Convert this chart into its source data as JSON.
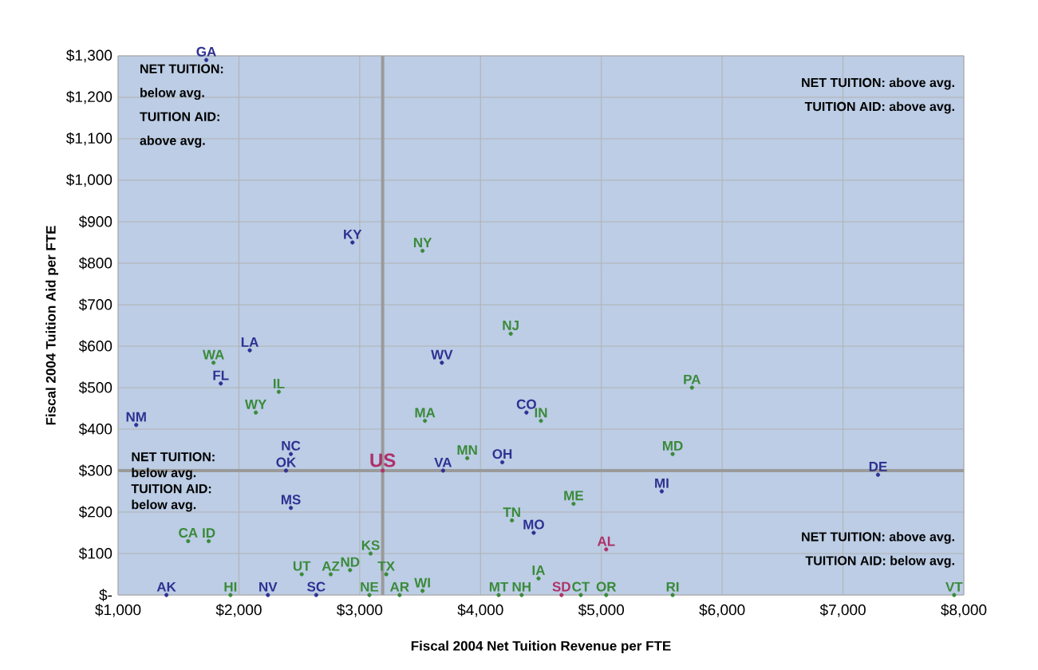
{
  "chart_data": {
    "type": "scatter",
    "xlabel": "Fiscal 2004 Net Tuition Revenue per FTE",
    "ylabel": "Fiscal 2004 Tuition Aid per FTE",
    "xlim": [
      1000,
      8000
    ],
    "ylim": [
      0,
      1300
    ],
    "xticks": [
      {
        "value": 1000,
        "label": "$1,000"
      },
      {
        "value": 2000,
        "label": "$2,000"
      },
      {
        "value": 3000,
        "label": "$3,000"
      },
      {
        "value": 4000,
        "label": "$4,000"
      },
      {
        "value": 5000,
        "label": "$5,000"
      },
      {
        "value": 6000,
        "label": "$6,000"
      },
      {
        "value": 7000,
        "label": "$7,000"
      },
      {
        "value": 8000,
        "label": "$8,000"
      }
    ],
    "yticks": [
      {
        "value": 0,
        "label": "$-"
      },
      {
        "value": 100,
        "label": "$100"
      },
      {
        "value": 200,
        "label": "$200"
      },
      {
        "value": 300,
        "label": "$300"
      },
      {
        "value": 400,
        "label": "$400"
      },
      {
        "value": 500,
        "label": "$500"
      },
      {
        "value": 600,
        "label": "$600"
      },
      {
        "value": 700,
        "label": "$700"
      },
      {
        "value": 800,
        "label": "$800"
      },
      {
        "value": 900,
        "label": "$900"
      },
      {
        "value": 1000,
        "label": "$1,000"
      },
      {
        "value": 1100,
        "label": "$1,100"
      },
      {
        "value": 1200,
        "label": "$1,200"
      },
      {
        "value": 1300,
        "label": "$1,300"
      }
    ],
    "grid": true,
    "marker": "circle",
    "ref_lines": [
      {
        "axis": "x",
        "value": 3190,
        "color": "#9a9a9a"
      },
      {
        "axis": "y",
        "value": 300,
        "color": "#9a9a9a"
      }
    ],
    "annotations": [
      "NET TUITION:",
      "below avg.",
      "TUITION AID:",
      "above avg.",
      "NET TUITION: above avg.",
      "TUITION AID: above avg.",
      "NET TUITION:",
      "below avg.",
      "TUITION AID:",
      "below avg.",
      "NET TUITION: above avg.",
      "TUITION AID: below avg."
    ],
    "series": [
      {
        "color": "#2e3192",
        "x": [
          1730,
          2940,
          2090,
          1850,
          1150,
          2430,
          2390,
          2430,
          3680,
          4380,
          3690,
          4180,
          4440,
          5500,
          7290,
          1400,
          2240,
          2640
        ],
        "values": [
          1290,
          850,
          590,
          510,
          410,
          340,
          300,
          210,
          560,
          440,
          300,
          320,
          150,
          250,
          290,
          0,
          0,
          0
        ],
        "value_labels": [
          "GA",
          "KY",
          "LA",
          "FL",
          "NM",
          "NC",
          "OK",
          "MS",
          "WV",
          "CO",
          "VA",
          "OH",
          "MO",
          "MI",
          "DE",
          "AK",
          "NV",
          "SC"
        ]
      },
      {
        "color": "#3a8a3a",
        "x": [
          1790,
          2330,
          2140,
          1580,
          1750,
          3520,
          3540,
          4250,
          4500,
          3890,
          5750,
          5590,
          4770,
          4260,
          4480,
          3090,
          2520,
          2760,
          2920,
          3220,
          3080,
          3330,
          3520,
          1930,
          4150,
          4340,
          4830,
          5040,
          5590,
          7920
        ],
        "values": [
          560,
          490,
          440,
          130,
          130,
          830,
          420,
          630,
          420,
          330,
          500,
          340,
          220,
          180,
          40,
          100,
          50,
          50,
          60,
          50,
          0,
          0,
          10,
          0,
          0,
          0,
          0,
          0,
          0,
          0
        ],
        "value_labels": [
          "WA",
          "IL",
          "WY",
          "CA",
          "ID",
          "NY",
          "MA",
          "NJ",
          "IN",
          "MN",
          "PA",
          "MD",
          "ME",
          "TN",
          "IA",
          "KS",
          "UT",
          "AZ",
          "ND",
          "TX",
          "NE",
          "AR",
          "WI",
          "HI",
          "MT",
          "NH",
          "CT",
          "OR",
          "RI",
          "VT"
        ]
      },
      {
        "color": "#b0306a",
        "x": [
          3190,
          5040,
          4670
        ],
        "values": [
          300,
          110,
          0
        ],
        "value_labels": [
          "US",
          "AL",
          "SD"
        ]
      }
    ]
  }
}
